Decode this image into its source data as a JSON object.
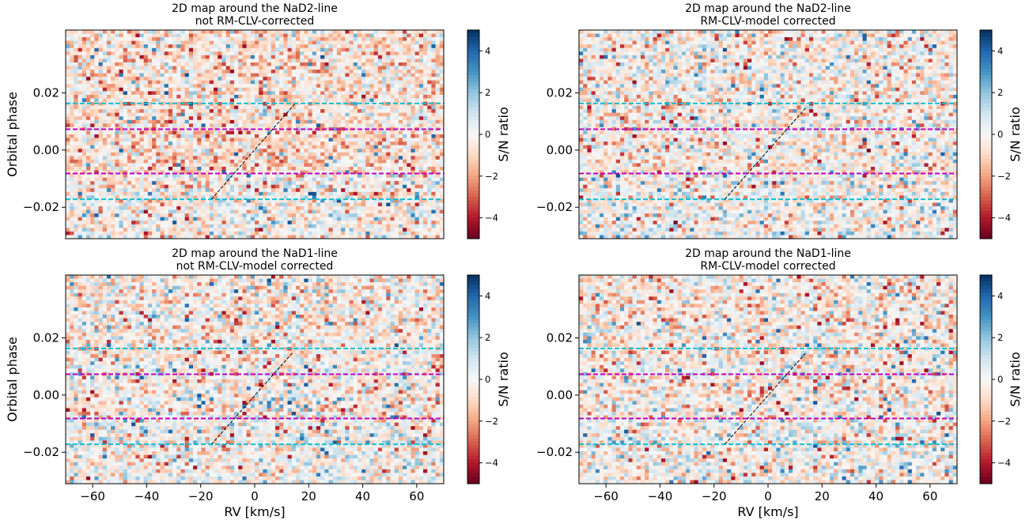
{
  "chart_data": [
    {
      "type": "heatmap",
      "title_line1": "2D map around the NaD2-line",
      "title_line2": "not RM-CLV-corrected",
      "xlabel": "",
      "ylabel": "Orbital phase",
      "xlim": [
        -70,
        70
      ],
      "ylim": [
        -0.031,
        0.042
      ],
      "xticks": [],
      "yticks": [
        0.02,
        0.0,
        -0.02
      ],
      "ytick_labels": [
        "0.02",
        "0.00",
        "−0.02"
      ],
      "colorbar": {
        "label": "S/N ratio",
        "range": [
          -5,
          5
        ],
        "ticks": [
          4,
          2,
          0,
          -2,
          -4
        ],
        "tick_labels": [
          "4",
          "2",
          "0",
          "−2",
          "−4"
        ],
        "colormap": "RdBu"
      },
      "hlines": [
        {
          "y": 0.0163,
          "color": "#17becf",
          "style": "dashed"
        },
        {
          "y": 0.0073,
          "color": "#bf00bf",
          "style": "dashed"
        },
        {
          "y": -0.0082,
          "color": "#bf00bf",
          "style": "dashed"
        },
        {
          "y": -0.0172,
          "color": "#17becf",
          "style": "dashed"
        }
      ],
      "diagonal": {
        "x": [
          -16,
          15
        ],
        "y": [
          -0.0172,
          0.0163
        ],
        "color": "#000000",
        "style": "dashed"
      },
      "seed": 11,
      "red_bias": 0.55
    },
    {
      "type": "heatmap",
      "title_line1": "2D map around the NaD2-line",
      "title_line2": "RM-CLV-model corrected",
      "xlabel": "",
      "ylabel": "",
      "xlim": [
        -70,
        70
      ],
      "ylim": [
        -0.031,
        0.042
      ],
      "xticks": [],
      "yticks": [
        0.02,
        0.0,
        -0.02
      ],
      "ytick_labels": [
        "0.02",
        "0.00",
        "−0.02"
      ],
      "colorbar": {
        "label": "S/N ratio",
        "range": [
          -5,
          5
        ],
        "ticks": [
          4,
          2,
          0,
          -2,
          -4
        ],
        "tick_labels": [
          "4",
          "2",
          "0",
          "−2",
          "−4"
        ],
        "colormap": "RdBu"
      },
      "hlines": [
        {
          "y": 0.0163,
          "color": "#17becf",
          "style": "dashed"
        },
        {
          "y": 0.0073,
          "color": "#bf00bf",
          "style": "dashed"
        },
        {
          "y": -0.0082,
          "color": "#bf00bf",
          "style": "dashed"
        },
        {
          "y": -0.0172,
          "color": "#17becf",
          "style": "dashed"
        }
      ],
      "diagonal": {
        "x": [
          -16,
          14
        ],
        "y": [
          -0.0172,
          0.0148
        ],
        "color": "#000000",
        "style": "dashed"
      },
      "seed": 23,
      "red_bias": 0.35
    },
    {
      "type": "heatmap",
      "title_line1": "2D map around the NaD1-line",
      "title_line2": "not RM-CLV-model corrected",
      "xlabel": "RV [km/s]",
      "ylabel": "Orbital phase",
      "xlim": [
        -70,
        70
      ],
      "ylim": [
        -0.031,
        0.042
      ],
      "xticks": [
        -60,
        -40,
        -20,
        0,
        20,
        40,
        60
      ],
      "xtick_labels": [
        "−60",
        "−40",
        "−20",
        "0",
        "20",
        "40",
        "60"
      ],
      "yticks": [
        0.02,
        0.0,
        -0.02
      ],
      "ytick_labels": [
        "0.02",
        "0.00",
        "−0.02"
      ],
      "colorbar": {
        "label": "S/N ratio",
        "range": [
          -5,
          5
        ],
        "ticks": [
          4,
          2,
          0,
          -2,
          -4
        ],
        "tick_labels": [
          "4",
          "2",
          "0",
          "−2",
          "−4"
        ],
        "colormap": "RdBu"
      },
      "hlines": [
        {
          "y": 0.0163,
          "color": "#17becf",
          "style": "dashed"
        },
        {
          "y": 0.0073,
          "color": "#bf00bf",
          "style": "dashed"
        },
        {
          "y": -0.0082,
          "color": "#bf00bf",
          "style": "dashed"
        },
        {
          "y": -0.0172,
          "color": "#17becf",
          "style": "dashed"
        }
      ],
      "diagonal": {
        "x": [
          -16,
          14
        ],
        "y": [
          -0.0172,
          0.0148
        ],
        "color": "#000000",
        "style": "dashed"
      },
      "seed": 37,
      "red_bias": 0.45
    },
    {
      "type": "heatmap",
      "title_line1": "2D map around the NaD1-line",
      "title_line2": "RM-CLV-model corrected",
      "xlabel": "RV [km/s]",
      "ylabel": "",
      "xlim": [
        -70,
        70
      ],
      "ylim": [
        -0.031,
        0.042
      ],
      "xticks": [
        -60,
        -40,
        -20,
        0,
        20,
        40,
        60
      ],
      "xtick_labels": [
        "−60",
        "−40",
        "−20",
        "0",
        "20",
        "40",
        "60"
      ],
      "yticks": [
        0.02,
        0.0,
        -0.02
      ],
      "ytick_labels": [
        "0.02",
        "0.00",
        "−0.02"
      ],
      "colorbar": {
        "label": "S/N ratio",
        "range": [
          -5,
          5
        ],
        "ticks": [
          4,
          2,
          0,
          -2,
          -4
        ],
        "tick_labels": [
          "4",
          "2",
          "0",
          "−2",
          "−4"
        ],
        "colormap": "RdBu"
      },
      "hlines": [
        {
          "y": 0.0163,
          "color": "#17becf",
          "style": "dashed"
        },
        {
          "y": 0.0073,
          "color": "#bf00bf",
          "style": "dashed"
        },
        {
          "y": -0.0082,
          "color": "#bf00bf",
          "style": "dashed"
        },
        {
          "y": -0.0172,
          "color": "#17becf",
          "style": "dashed"
        }
      ],
      "diagonal": {
        "x": [
          -16,
          14
        ],
        "y": [
          -0.0172,
          0.0148
        ],
        "color": "#000000",
        "style": "dashed"
      },
      "seed": 51,
      "red_bias": 0.4
    }
  ]
}
